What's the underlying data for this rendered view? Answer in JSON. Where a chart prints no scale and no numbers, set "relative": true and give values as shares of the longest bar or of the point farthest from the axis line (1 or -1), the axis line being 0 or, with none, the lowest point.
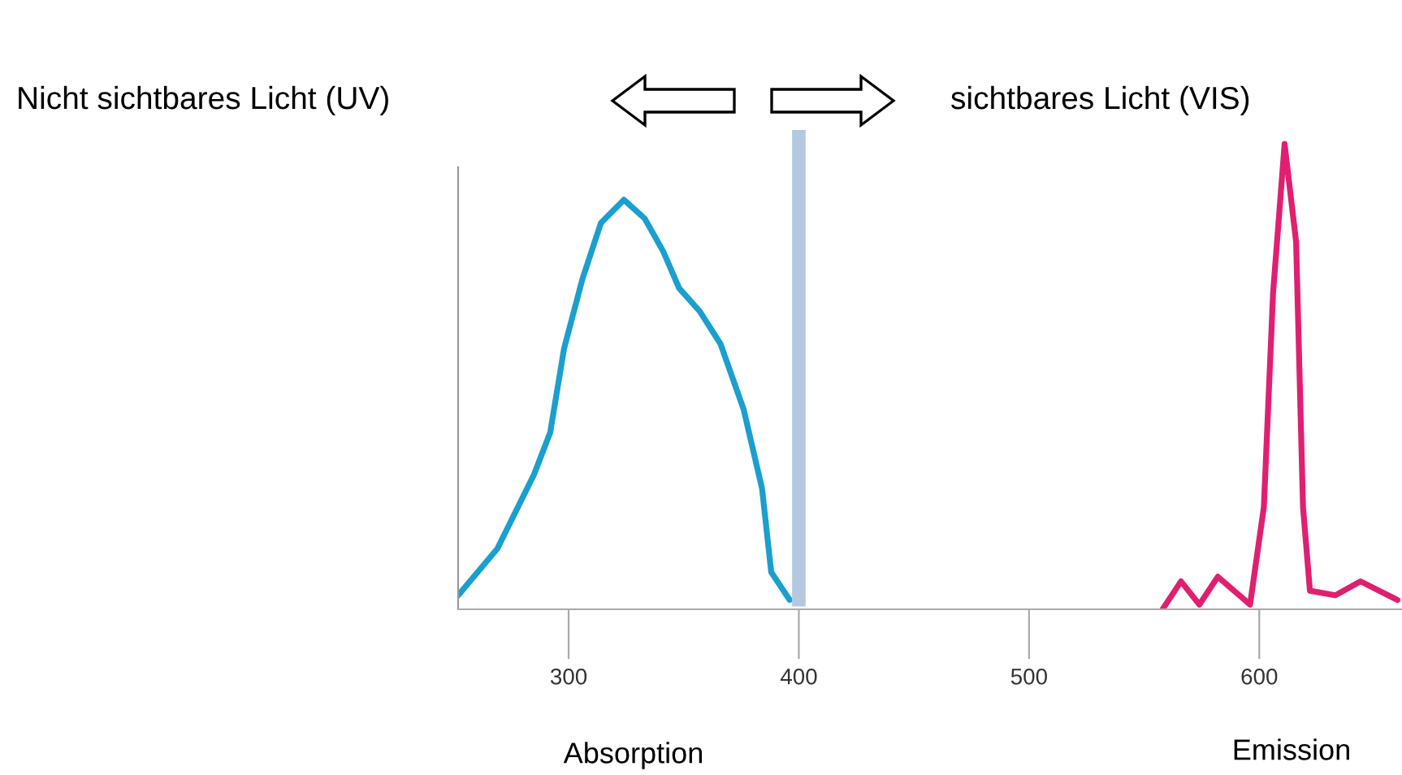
{
  "chart_data": {
    "type": "line",
    "relative": true,
    "xlim": [
      252,
      662
    ],
    "xticks": [
      300,
      400,
      500,
      600
    ],
    "grid": false,
    "legend": false,
    "marker": "none",
    "line_style": "solid",
    "annotations": [
      "Nicht sichtbares Licht (UV)",
      "sichtbares Licht (VIS)",
      "Absorption",
      "Emission"
    ],
    "ref_lines": [
      {
        "axis": "x",
        "value": 400,
        "color": "#b4c8e0"
      }
    ],
    "series": [
      {
        "color": "#1a9fcf",
        "x": [
          252,
          269,
          285,
          292,
          298,
          306,
          314,
          324,
          333,
          341,
          348,
          357,
          366,
          376,
          384,
          388,
          396
        ],
        "values": [
          0.03,
          0.13,
          0.29,
          0.38,
          0.56,
          0.71,
          0.83,
          0.88,
          0.84,
          0.77,
          0.69,
          0.64,
          0.57,
          0.43,
          0.26,
          0.08,
          0.02
        ]
      },
      {
        "color": "#e0206f",
        "x": [
          558,
          566,
          574,
          582,
          596,
          602,
          606,
          611,
          616,
          619,
          622,
          633,
          644,
          660
        ],
        "values": [
          0,
          0.06,
          0.01,
          0.07,
          0.01,
          0.22,
          0.68,
          1,
          0.79,
          0.22,
          0.04,
          0.03,
          0.06,
          0.02
        ]
      }
    ]
  }
}
